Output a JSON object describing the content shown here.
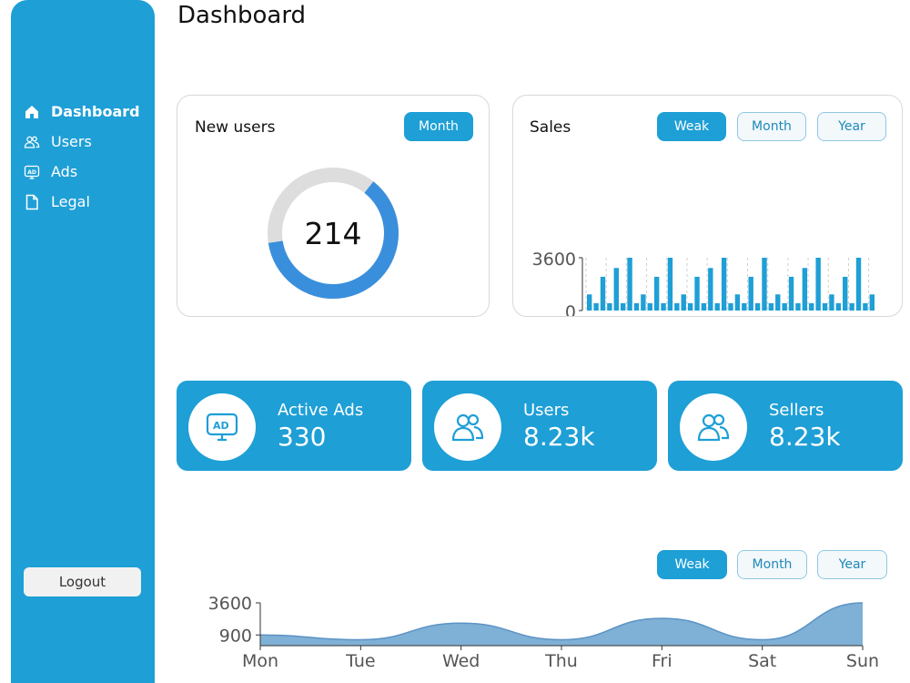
{
  "page_title": "Dashboard",
  "sidebar": {
    "items": [
      {
        "label": "Dashboard",
        "icon": "home-icon",
        "active": true
      },
      {
        "label": "Users",
        "icon": "users-icon"
      },
      {
        "label": "Ads",
        "icon": "ad-icon"
      },
      {
        "label": "Legal",
        "icon": "document-icon"
      }
    ],
    "logout_label": "Logout"
  },
  "new_users": {
    "title": "New users",
    "period_label": "Month",
    "value": "214",
    "progress": 0.62
  },
  "sales": {
    "title": "Sales",
    "periods": [
      "Weak",
      "Month",
      "Year"
    ],
    "selected": "Weak",
    "chart_data": {
      "type": "bar",
      "ytick_labels": [
        "3600",
        "0"
      ],
      "ylim": [
        0,
        3600
      ],
      "values": [
        1100,
        500,
        2300,
        500,
        2900,
        500,
        3600,
        500,
        1100,
        500,
        2300,
        500,
        3600,
        500,
        1100,
        500,
        2300,
        500,
        2900,
        500,
        3600,
        500,
        1100,
        500,
        2300,
        500,
        3600,
        500,
        1100,
        500,
        2300,
        500,
        2900,
        500,
        3600,
        500,
        1100,
        500,
        2300,
        500,
        3600,
        500,
        1100
      ],
      "grid": true
    }
  },
  "stats": [
    {
      "label": "Active Ads",
      "value": "330",
      "icon": "ad-monitor-icon"
    },
    {
      "label": "Users",
      "value": "8.23k",
      "icon": "users-icon"
    },
    {
      "label": "Sellers",
      "value": "8.23k",
      "icon": "sellers-icon"
    }
  ],
  "weekly": {
    "periods": [
      "Weak",
      "Month",
      "Year"
    ],
    "selected": "Weak",
    "chart_data": {
      "type": "area",
      "categories": [
        "Mon",
        "Tue",
        "Wed",
        "Thu",
        "Fri",
        "Sat",
        "Sun"
      ],
      "values": [
        900,
        500,
        1900,
        500,
        2300,
        500,
        3600
      ],
      "ytick_labels": [
        "3600",
        "900"
      ],
      "ylim": [
        0,
        3600
      ]
    }
  },
  "colors": {
    "accent": "#1e9fd6",
    "donut_fill": "#3a8fdc",
    "donut_track": "#dddddd",
    "area_fill": "#7fb0d6",
    "area_stroke": "#5b93c4"
  }
}
